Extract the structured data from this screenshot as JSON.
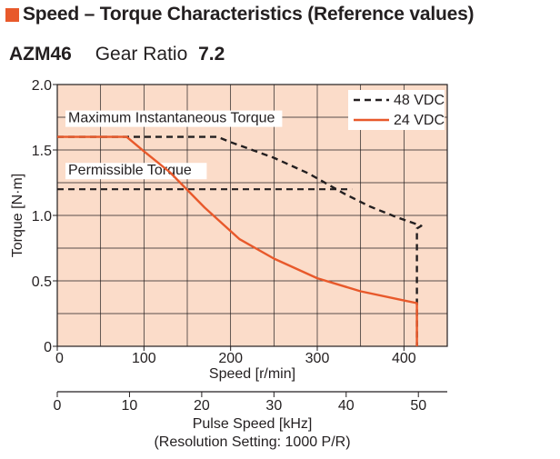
{
  "header": {
    "title": "Speed – Torque Characteristics (Reference values)",
    "accent_color": "#e8592b"
  },
  "subtitle": {
    "model": "AZM46",
    "ratio_label": "Gear Ratio",
    "ratio_value": "7.2"
  },
  "chart_data": {
    "type": "line",
    "xlabel": "Speed [r/min]",
    "ylabel": "Torque [N·m]",
    "xlim": [
      0,
      450
    ],
    "ylim": [
      0,
      2.0
    ],
    "x_ticks": [
      0,
      100,
      200,
      300,
      400
    ],
    "y_ticks": [
      0,
      0.5,
      1.0,
      1.5,
      2.0
    ],
    "y_tick_labels": [
      "0",
      "0.5",
      "1.0",
      "1.5",
      "2.0"
    ],
    "grid": true,
    "background_color": "#fbdcc9",
    "legend_position": "top-right",
    "series": [
      {
        "name": "48 VDC",
        "style": "dashed",
        "color": "#231f20",
        "points": [
          [
            0,
            1.6
          ],
          [
            185,
            1.6
          ],
          [
            200,
            1.56
          ],
          [
            250,
            1.44
          ],
          [
            290,
            1.32
          ],
          [
            330,
            1.17
          ],
          [
            360,
            1.07
          ],
          [
            390,
            0.99
          ],
          [
            420,
            0.92
          ],
          [
            415,
            0.9
          ],
          [
            415,
            0
          ]
        ]
      },
      {
        "name": "24 VDC",
        "color": "#e8592b",
        "points": [
          [
            0,
            1.6
          ],
          [
            80,
            1.6
          ],
          [
            100,
            1.49
          ],
          [
            130,
            1.33
          ],
          [
            170,
            1.06
          ],
          [
            210,
            0.82
          ],
          [
            250,
            0.67
          ],
          [
            300,
            0.52
          ],
          [
            350,
            0.42
          ],
          [
            400,
            0.35
          ],
          [
            415,
            0.33
          ],
          [
            415,
            0
          ]
        ]
      }
    ],
    "annotations": [
      {
        "text": "Maximum Instantaneous Torque",
        "y": 1.6
      },
      {
        "text": "Permissible Torque",
        "y": 1.2
      }
    ],
    "secondary_axis": {
      "xlabel": "Pulse Speed [kHz]",
      "xlabel_note": "(Resolution Setting: 1000 P/R)",
      "xlim": [
        0,
        54
      ],
      "ticks": [
        0,
        10,
        20,
        30,
        40,
        50
      ]
    }
  }
}
